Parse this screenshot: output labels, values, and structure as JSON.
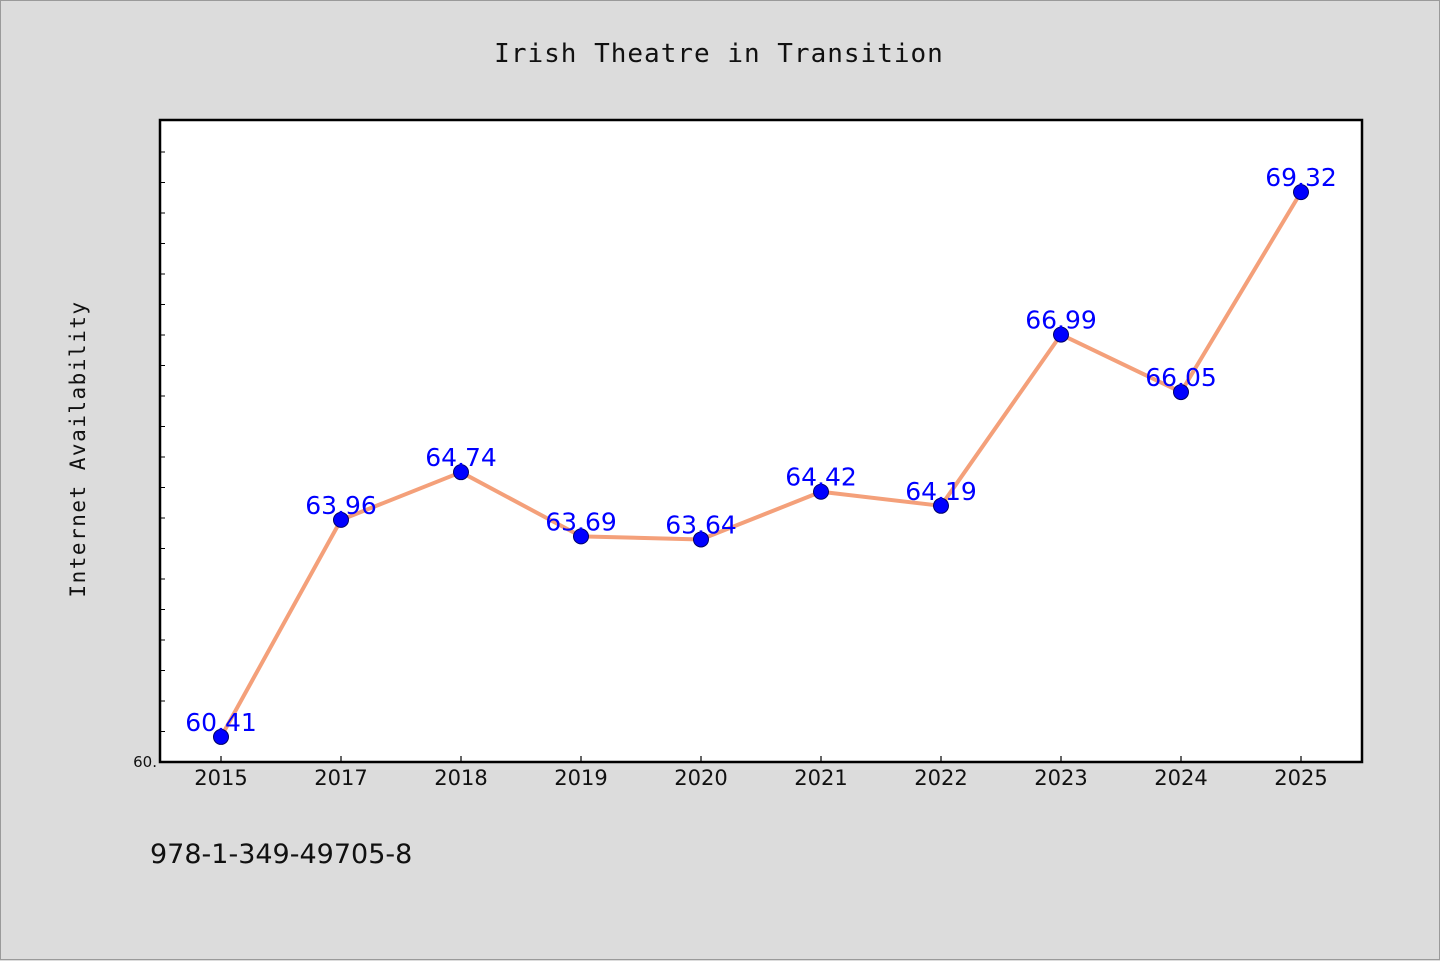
{
  "chart_data": {
    "type": "line",
    "title": "Irish Theatre in Transition",
    "ylabel": "Internet Availability",
    "xlabel": "",
    "categories": [
      "2015",
      "2017",
      "2018",
      "2019",
      "2020",
      "2021",
      "2022",
      "2023",
      "2024",
      "2025"
    ],
    "values": [
      60.41,
      63.96,
      64.74,
      63.69,
      63.64,
      64.42,
      64.19,
      66.99,
      66.05,
      69.32
    ],
    "data_labels": [
      "60.41",
      "63.96",
      "64.74",
      "63.69",
      "63.64",
      "64.42",
      "64.19",
      "66.99",
      "66.05",
      "69.32"
    ],
    "ylim": [
      60.0,
      70.5
    ],
    "y_tick_label": "60.",
    "grid": false,
    "line_color": "#f4a07a",
    "marker_color": "#0000ff",
    "label_color": "#0000ff",
    "background_color": "#dcdcdc",
    "plot_background": "#ffffff"
  },
  "footer": {
    "isbn": "978-1-349-49705-8"
  }
}
